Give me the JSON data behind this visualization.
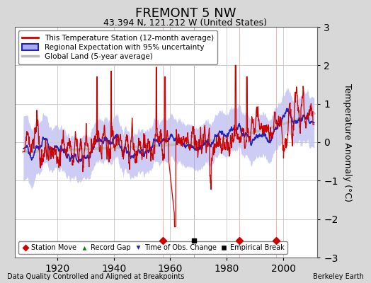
{
  "title": "FREMONT 5 NW",
  "subtitle": "43.394 N, 121.212 W (United States)",
  "ylabel": "Temperature Anomaly (°C)",
  "xlabel_left": "Data Quality Controlled and Aligned at Breakpoints",
  "xlabel_right": "Berkeley Earth",
  "ylim": [
    -3,
    3
  ],
  "xlim": [
    1905,
    2012
  ],
  "yticks": [
    -3,
    -2,
    -1,
    0,
    1,
    2,
    3
  ],
  "xticks": [
    1920,
    1940,
    1960,
    1980,
    2000
  ],
  "legend_entries": [
    "This Temperature Station (12-month average)",
    "Regional Expectation with 95% uncertainty",
    "Global Land (5-year average)"
  ],
  "station_moves": [
    1957.5,
    1984.5,
    1997.5
  ],
  "record_gaps": [],
  "obs_changes": [],
  "empirical_breaks": [
    1968.5
  ],
  "bg_color": "#d8d8d8",
  "plot_bg_color": "#ffffff",
  "red_color": "#cc0000",
  "blue_color": "#2222bb",
  "blue_fill_color": "#aaaaee",
  "gray_color": "#bbbbbb",
  "grid_color": "#cccccc"
}
